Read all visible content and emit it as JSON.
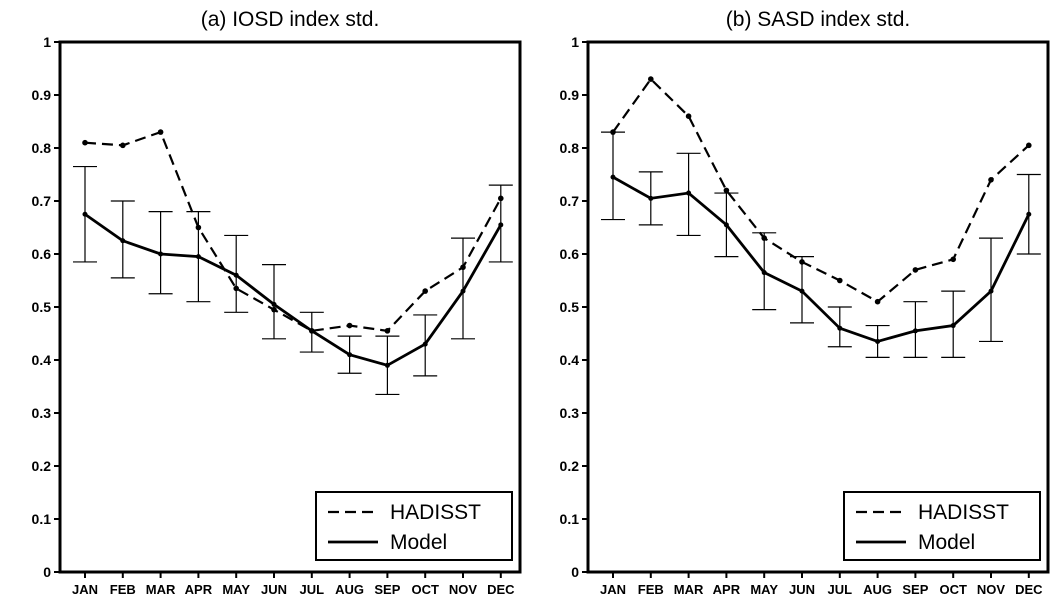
{
  "chart_data": [
    {
      "type": "line",
      "title": "(a) IOSD index std.",
      "xlabel": "",
      "ylabel": "",
      "categories": [
        "JAN",
        "FEB",
        "MAR",
        "APR",
        "MAY",
        "JUN",
        "JUL",
        "AUG",
        "SEP",
        "OCT",
        "NOV",
        "DEC"
      ],
      "ylim": [
        0,
        1
      ],
      "yticks": [
        "0",
        "0.1",
        "0.2",
        "0.3",
        "0.4",
        "0.5",
        "0.6",
        "0.7",
        "0.8",
        "0.9",
        "1"
      ],
      "grid": false,
      "legend": "bottom-right",
      "series": [
        {
          "name": "HADISST",
          "style": "dashed",
          "values": [
            0.81,
            0.805,
            0.83,
            0.65,
            0.535,
            0.495,
            0.455,
            0.465,
            0.455,
            0.53,
            0.575,
            0.705
          ]
        },
        {
          "name": "Model",
          "style": "solid",
          "values": [
            0.675,
            0.625,
            0.6,
            0.595,
            0.56,
            0.505,
            0.455,
            0.41,
            0.39,
            0.43,
            0.53,
            0.655
          ],
          "err_low": [
            0.585,
            0.555,
            0.525,
            0.51,
            0.49,
            0.44,
            0.415,
            0.375,
            0.335,
            0.37,
            0.44,
            0.585
          ],
          "err_high": [
            0.765,
            0.7,
            0.68,
            0.68,
            0.635,
            0.58,
            0.49,
            0.445,
            0.445,
            0.485,
            0.63,
            0.73
          ]
        }
      ]
    },
    {
      "type": "line",
      "title": "(b) SASD index std.",
      "xlabel": "",
      "ylabel": "",
      "categories": [
        "JAN",
        "FEB",
        "MAR",
        "APR",
        "MAY",
        "JUN",
        "JUL",
        "AUG",
        "SEP",
        "OCT",
        "NOV",
        "DEC"
      ],
      "ylim": [
        0,
        1
      ],
      "yticks": [
        "0",
        "0.1",
        "0.2",
        "0.3",
        "0.4",
        "0.5",
        "0.6",
        "0.7",
        "0.8",
        "0.9",
        "1"
      ],
      "grid": false,
      "legend": "bottom-right",
      "series": [
        {
          "name": "HADISST",
          "style": "dashed",
          "values": [
            0.83,
            0.93,
            0.86,
            0.72,
            0.63,
            0.585,
            0.55,
            0.51,
            0.57,
            0.59,
            0.74,
            0.805
          ]
        },
        {
          "name": "Model",
          "style": "solid",
          "values": [
            0.745,
            0.705,
            0.715,
            0.655,
            0.565,
            0.53,
            0.46,
            0.435,
            0.455,
            0.465,
            0.53,
            0.675
          ],
          "err_low": [
            0.665,
            0.655,
            0.635,
            0.595,
            0.495,
            0.47,
            0.425,
            0.405,
            0.405,
            0.405,
            0.435,
            0.6
          ],
          "err_high": [
            0.83,
            0.755,
            0.79,
            0.715,
            0.64,
            0.595,
            0.5,
            0.465,
            0.51,
            0.53,
            0.63,
            0.75
          ]
        }
      ]
    }
  ]
}
